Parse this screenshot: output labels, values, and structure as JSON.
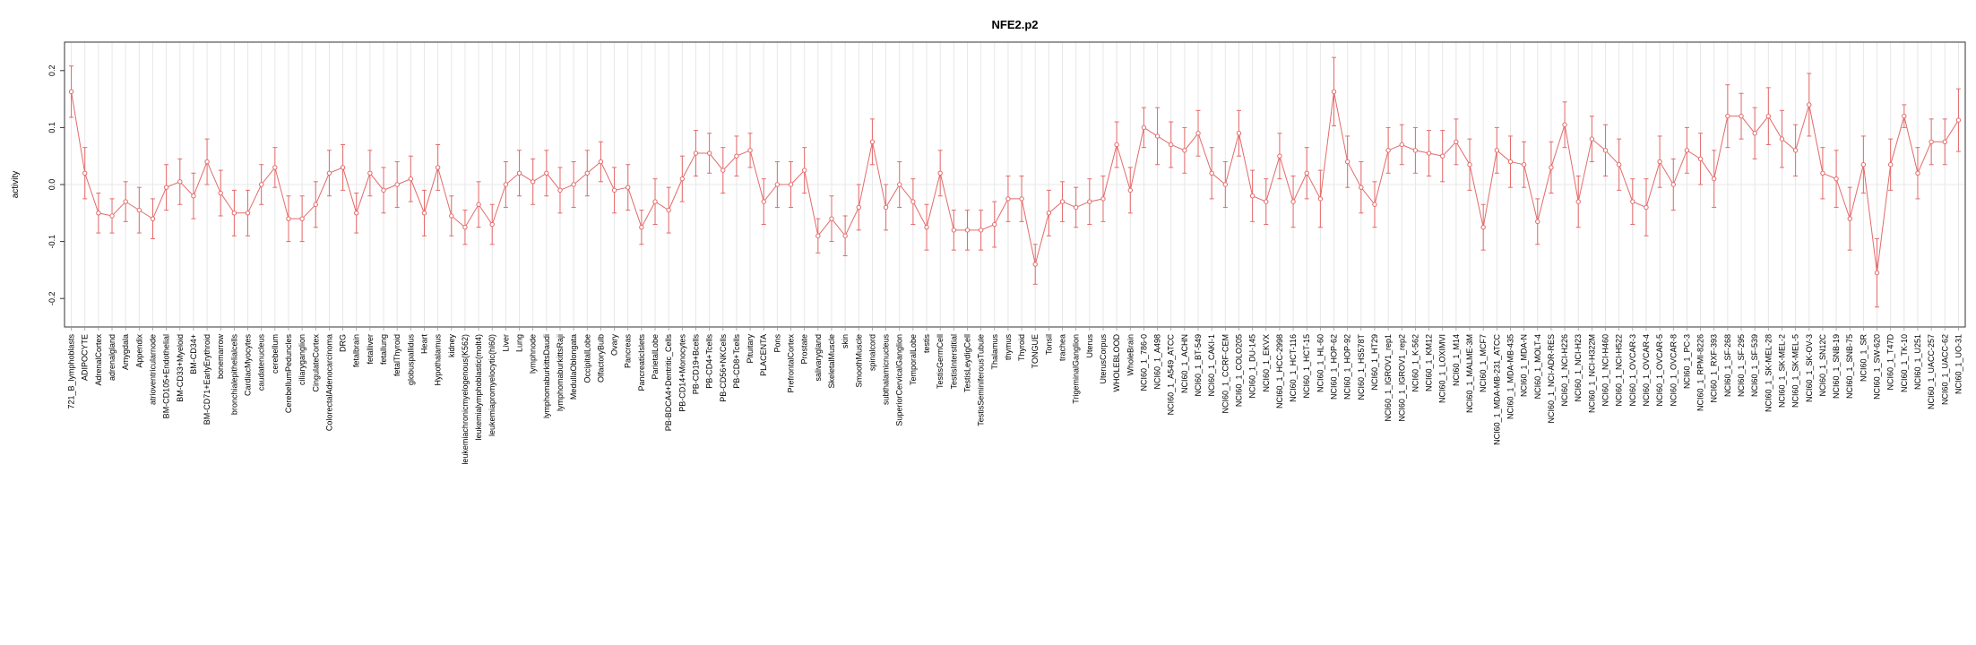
{
  "window": {
    "background": "#ffffff"
  },
  "chart_data": {
    "type": "line",
    "title": "NFE2.p2",
    "ylabel": "activity",
    "xlabel": "",
    "ylim": [
      -0.25,
      0.25
    ],
    "yticks": [
      -0.2,
      -0.1,
      0.0,
      0.1,
      0.2
    ],
    "legend": "none",
    "grid": "vertical line per category, light gray; faint horizontal line at 0",
    "series_color": "#e46a6a",
    "grid_color": "#e7e7e7",
    "axis_color": "#333333",
    "point_style": "open-circle",
    "error_bars": true,
    "categories": [
      "721_B_lymphoblasts",
      "ADIPOCYTE",
      "AdrenalCortex",
      "adrenalgland",
      "Amygdala",
      "Appendix",
      "atrioventricularnode",
      "BM-CD105+Endothelial",
      "BM-CD33+Myeloid",
      "BM-CD34+",
      "BM-CD71+EarlyErythroid",
      "bonemarrow",
      "bronchialepithelialcells",
      "CardiacMyocytes",
      "caudatenucleus",
      "cerebellum",
      "CerebellumPeduncles",
      "ciliaryganglion",
      "CingulateCortex",
      "ColorectalAdenocarcinoma",
      "DRG",
      "fetalbrain",
      "fetalliver",
      "fetallung",
      "fetalThyroid",
      "globuspallidus",
      "Heart",
      "Hypothalamus",
      "kidney",
      "leukemiachronicmyelogenous(K562)",
      "leukemialymphoblastic(molt4)",
      "leukemiapromyelocytic(hl60)",
      "Liver",
      "Lung",
      "lymphnode",
      "lymphomaburkittsDaudi",
      "lymphomaburkittsRaji",
      "MedullaOblongata",
      "OccipitalLobe",
      "OlfactoryBulb",
      "Ovary",
      "Pancreas",
      "PancreaticIslets",
      "ParietalLobe",
      "PB-BDCA4+Dentritic_Cells",
      "PB-CD14+Monocytes",
      "PB-CD19+Bcells",
      "PB-CD4+Tcells",
      "PB-CD56+NKCells",
      "PB-CD8+Tcells",
      "Pituitary",
      "PLACENTA",
      "Pons",
      "PrefrontalCortex",
      "Prostate",
      "salivarygland",
      "SkeletalMuscle",
      "skin",
      "SmoothMuscle",
      "spinalcord",
      "subthalamicnucleus",
      "SuperiorCervicalGanglion",
      "TemporalLobe",
      "testis",
      "TestisGermCell",
      "TestisInterstitial",
      "TestisLeydigCell",
      "TestisSeminiferousTubule",
      "Thalamus",
      "thymus",
      "Thyroid",
      "TONGUE",
      "Tonsil",
      "trachea",
      "TrigeminalGanglion",
      "Uterus",
      "UterusCorpus",
      "WHOLEBLOOD",
      "WholeBrain",
      "NCI60_1_786-0",
      "NCI60_1_A498",
      "NCI60_1_A549_ATCC",
      "NCI60_1_ACHN",
      "NCI60_1_BT-549",
      "NCI60_1_CAKI-1",
      "NCI60_1_CCRF-CEM",
      "NCI60_1_COLO205",
      "NCI60_1_DU-145",
      "NCI60_1_EKVX",
      "NCI60_1_HCC-2998",
      "NCI60_1_HCT-116",
      "NCI60_1_HCT-15",
      "NCI60_1_HL-60",
      "NCI60_1_HOP-62",
      "NCI60_1_HOP-92",
      "NCI60_1_HS578T",
      "NCI60_1_HT29",
      "NCI60_1_IGROV1_rep1",
      "NCI60_1_IGROV1_rep2",
      "NCI60_1_K-562",
      "NCI60_1_KM12",
      "NCI60_1_LOXIMVI",
      "NCI60_1_M14",
      "NCI60_1_MALME-3M",
      "NCI60_1_MCF7",
      "NCI60_1_MDA-MB-231_ATCC",
      "NCI60_1_MDA-MB-435",
      "NCI60_1_MDA-N",
      "NCI60_1_MOLT-4",
      "NCI60_1_NCI-ADR-RES",
      "NCI60_1_NCI-H226",
      "NCI60_1_NCI-H23",
      "NCI60_1_NCI-H322M",
      "NCI60_1_NCI-H460",
      "NCI60_1_NCI-H522",
      "NCI60_1_OVCAR-3",
      "NCI60_1_OVCAR-4",
      "NCI60_1_OVCAR-5",
      "NCI60_1_OVCAR-8",
      "NCI60_1_PC-3",
      "NCI60_1_RPMI-8226",
      "NCI60_1_RXF-393",
      "NCI60_1_SF-268",
      "NCI60_1_SF-295",
      "NCI60_1_SF-539",
      "NCI60_1_SK-MEL-28",
      "NCI60_1_SK-MEL-2",
      "NCI60_1_SK-MEL-5",
      "NCI60_1_SK-OV-3",
      "NCI60_1_SN12C",
      "NCI60_1_SNB-19",
      "NCI60_1_SNB-75",
      "NCI60_1_SR",
      "NCI60_1_SW-620",
      "NCI60_1_T47D",
      "NCI60_1_TK-10",
      "NCI60_1_U251",
      "NCI60_1_UACC-257",
      "NCI60_1_UACC-62",
      "NCI60_1_UO-31"
    ],
    "values": [
      0.163,
      0.02,
      -0.05,
      -0.055,
      -0.03,
      -0.045,
      -0.06,
      -0.005,
      0.005,
      -0.02,
      0.04,
      -0.015,
      -0.05,
      -0.05,
      0.0,
      0.03,
      -0.06,
      -0.06,
      -0.035,
      0.02,
      0.03,
      -0.05,
      0.02,
      -0.01,
      0.0,
      0.01,
      -0.05,
      0.03,
      -0.055,
      -0.075,
      -0.035,
      -0.07,
      0.0,
      0.02,
      0.005,
      0.02,
      -0.01,
      0.0,
      0.02,
      0.04,
      -0.01,
      -0.005,
      -0.075,
      -0.03,
      -0.045,
      0.01,
      0.055,
      0.055,
      0.025,
      0.05,
      0.06,
      -0.03,
      0.0,
      0.0,
      0.025,
      -0.09,
      -0.06,
      -0.09,
      -0.04,
      0.075,
      -0.04,
      0.0,
      -0.03,
      -0.075,
      0.02,
      -0.08,
      -0.08,
      -0.08,
      -0.07,
      -0.025,
      -0.025,
      -0.14,
      -0.05,
      -0.03,
      -0.04,
      -0.03,
      -0.025,
      0.07,
      -0.01,
      0.1,
      0.085,
      0.07,
      0.06,
      0.09,
      0.02,
      0.0,
      0.09,
      -0.02,
      -0.03,
      0.05,
      -0.03,
      0.02,
      -0.025,
      0.163,
      0.04,
      -0.005,
      -0.035,
      0.06,
      0.07,
      0.06,
      0.055,
      0.05,
      0.075,
      0.035,
      -0.075,
      0.06,
      0.04,
      0.035,
      -0.065,
      0.03,
      0.105,
      -0.03,
      0.08,
      0.06,
      0.035,
      -0.03,
      -0.04,
      0.04,
      0.0,
      0.06,
      0.045,
      0.01,
      0.12,
      0.12,
      0.09,
      0.12,
      0.08,
      0.06,
      0.14,
      0.02,
      0.01,
      -0.06,
      0.035,
      -0.155,
      0.035,
      0.12,
      0.02,
      0.075,
      0.075,
      0.113
    ],
    "errors": [
      0.045,
      0.045,
      0.035,
      0.03,
      0.035,
      0.04,
      0.035,
      0.04,
      0.04,
      0.04,
      0.04,
      0.04,
      0.04,
      0.04,
      0.035,
      0.035,
      0.04,
      0.04,
      0.04,
      0.04,
      0.04,
      0.035,
      0.04,
      0.04,
      0.04,
      0.04,
      0.04,
      0.04,
      0.035,
      0.03,
      0.04,
      0.035,
      0.04,
      0.04,
      0.04,
      0.04,
      0.04,
      0.04,
      0.04,
      0.035,
      0.04,
      0.04,
      0.03,
      0.04,
      0.04,
      0.04,
      0.04,
      0.035,
      0.04,
      0.035,
      0.03,
      0.04,
      0.04,
      0.04,
      0.04,
      0.03,
      0.04,
      0.035,
      0.04,
      0.04,
      0.04,
      0.04,
      0.04,
      0.04,
      0.04,
      0.035,
      0.035,
      0.035,
      0.04,
      0.04,
      0.04,
      0.035,
      0.04,
      0.035,
      0.035,
      0.04,
      0.04,
      0.04,
      0.04,
      0.035,
      0.05,
      0.04,
      0.04,
      0.04,
      0.045,
      0.04,
      0.04,
      0.045,
      0.04,
      0.04,
      0.045,
      0.045,
      0.05,
      0.06,
      0.045,
      0.045,
      0.04,
      0.04,
      0.035,
      0.04,
      0.04,
      0.045,
      0.04,
      0.045,
      0.04,
      0.04,
      0.045,
      0.04,
      0.04,
      0.045,
      0.04,
      0.045,
      0.04,
      0.045,
      0.045,
      0.04,
      0.05,
      0.045,
      0.045,
      0.04,
      0.045,
      0.05,
      0.055,
      0.04,
      0.045,
      0.05,
      0.05,
      0.045,
      0.055,
      0.045,
      0.05,
      0.055,
      0.05,
      0.06,
      0.045,
      0.02,
      0.045,
      0.04,
      0.04,
      0.055
    ]
  }
}
